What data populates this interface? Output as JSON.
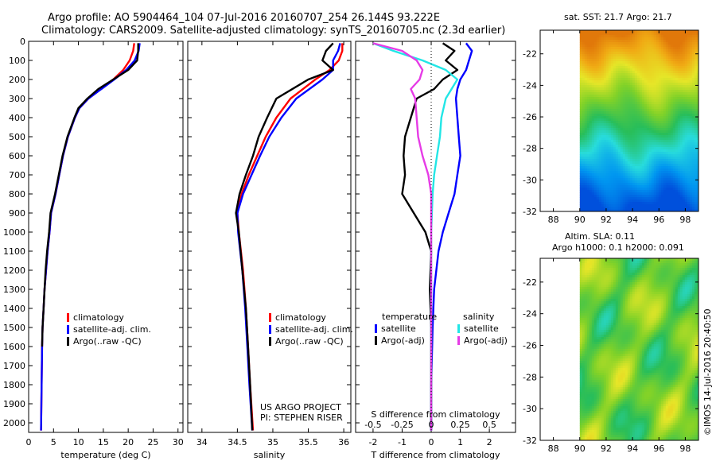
{
  "header": {
    "line1": "Argo profile: AO 5904464_104 07-Jul-2016 20160707_254 26.144S 93.222E",
    "line2": "Climatology: CARS2009. Satellite-adjusted climatology: synTS_20160705.nc (2.3d earlier)"
  },
  "colors": {
    "climatology": "#ff0000",
    "satellite": "#0000ff",
    "argo": "#000000",
    "sal_satellite": "#22e6e6",
    "sal_argo": "#e63be6"
  },
  "chart_data": [
    {
      "id": "temperature",
      "type": "line",
      "xlabel": "temperature (deg C)",
      "xlim": [
        0,
        31
      ],
      "xticks": [
        0,
        5,
        10,
        15,
        20,
        25,
        30
      ],
      "ylim": [
        2050,
        0
      ],
      "yticks": [
        0,
        100,
        200,
        300,
        400,
        500,
        600,
        700,
        800,
        900,
        1000,
        1100,
        1200,
        1300,
        1400,
        1500,
        1600,
        1700,
        1800,
        1900,
        2000
      ],
      "legend": [
        "climatology",
        "satellite-adj. clim.",
        "Argo(..raw -QC)"
      ],
      "series": [
        {
          "name": "climatology",
          "color": "#ff0000",
          "x": [
            21.2,
            21.0,
            20.3,
            19.0,
            17.0,
            14.5,
            12.0,
            10.2,
            9.3,
            8.6,
            7.9,
            6.9,
            5.4,
            4.5,
            4.2,
            3.8,
            3.5,
            3.2,
            3.0,
            2.8,
            2.7,
            2.6,
            2.5
          ],
          "y": [
            10,
            50,
            100,
            150,
            200,
            250,
            300,
            350,
            400,
            450,
            500,
            600,
            800,
            900,
            1000,
            1100,
            1200,
            1300,
            1400,
            1500,
            1600,
            1800,
            2040
          ]
        },
        {
          "name": "satellite-adj. clim.",
          "color": "#0000ff",
          "x": [
            22.3,
            22.1,
            21.3,
            19.6,
            17.2,
            14.6,
            12.0,
            10.2,
            9.3,
            8.6,
            7.9,
            6.9,
            5.4,
            4.5,
            4.2,
            3.8,
            3.5,
            3.2,
            3.0,
            2.8,
            2.7,
            2.6,
            2.5
          ],
          "y": [
            10,
            50,
            100,
            150,
            200,
            250,
            300,
            350,
            400,
            450,
            500,
            600,
            800,
            900,
            1000,
            1100,
            1200,
            1300,
            1400,
            1500,
            1600,
            1800,
            2040
          ]
        },
        {
          "name": "Argo(..raw -QC)",
          "color": "#000000",
          "x": [
            22.0,
            22.0,
            21.8,
            20.0,
            17.0,
            14.0,
            11.8,
            10.0,
            9.2,
            8.5,
            7.8,
            6.8,
            5.3,
            4.4,
            4.1,
            3.7,
            3.4,
            3.2,
            3.0,
            2.8,
            2.7
          ],
          "y": [
            10,
            50,
            100,
            150,
            200,
            250,
            300,
            350,
            400,
            450,
            500,
            600,
            800,
            900,
            1000,
            1100,
            1200,
            1300,
            1400,
            1500,
            1600
          ]
        }
      ]
    },
    {
      "id": "salinity",
      "type": "line",
      "xlabel": "salinity",
      "xlim": [
        33.8,
        36.1
      ],
      "xticks": [
        34,
        34.5,
        35,
        35.5,
        36
      ],
      "ylim": [
        2050,
        0
      ],
      "legend": [
        "climatology",
        "satellite-adj. clim.",
        "Argo(..raw -QC)"
      ],
      "annotation": [
        "US ARGO PROJECT",
        "PI: STEPHEN RISER"
      ],
      "series": [
        {
          "name": "climatology",
          "color": "#ff0000",
          "x": [
            35.98,
            35.98,
            35.93,
            35.8,
            35.6,
            35.25,
            35.05,
            34.9,
            34.78,
            34.66,
            34.56,
            34.5,
            34.52,
            34.58,
            34.62,
            34.65,
            34.68,
            34.72
          ],
          "y": [
            10,
            50,
            100,
            150,
            200,
            300,
            400,
            500,
            600,
            700,
            800,
            900,
            1000,
            1200,
            1400,
            1600,
            1800,
            2040
          ]
        },
        {
          "name": "satellite-adj. clim.",
          "color": "#0000ff",
          "x": [
            35.95,
            35.92,
            35.85,
            35.85,
            35.7,
            35.33,
            35.12,
            34.95,
            34.82,
            34.7,
            34.58,
            34.5,
            34.51,
            34.57,
            34.61,
            34.64,
            34.67,
            34.71
          ],
          "y": [
            10,
            50,
            100,
            150,
            200,
            300,
            400,
            500,
            600,
            700,
            800,
            900,
            1000,
            1200,
            1400,
            1600,
            1800,
            2040
          ]
        },
        {
          "name": "Argo(..raw -QC)",
          "color": "#000000",
          "x": [
            35.85,
            35.75,
            35.7,
            35.85,
            35.5,
            35.05,
            34.92,
            34.8,
            34.72,
            34.62,
            34.53,
            34.48,
            34.52,
            34.57,
            34.62,
            34.65,
            34.68,
            34.71
          ],
          "y": [
            10,
            50,
            100,
            150,
            200,
            300,
            400,
            500,
            600,
            700,
            800,
            900,
            1000,
            1200,
            1400,
            1600,
            1800,
            2040
          ]
        }
      ]
    },
    {
      "id": "difference",
      "type": "line",
      "xlabel": "T difference from climatology",
      "xlabel_top": "S difference from climatology",
      "xlim": [
        -2.6,
        2.9
      ],
      "xticks": [
        -2,
        -1,
        0,
        1,
        2
      ],
      "xticks_top": [
        -0.5,
        -0.25,
        0,
        0.25,
        0.5
      ],
      "ylim": [
        2050,
        0
      ],
      "legend_titles": [
        "temperature",
        "salinity"
      ],
      "legend": [
        "satellite",
        "Argo(-adj)",
        "satellite",
        "Argo(-adj)"
      ],
      "series": [
        {
          "name": "temperature satellite",
          "color": "#0000ff",
          "x": [
            1.2,
            1.4,
            1.3,
            1.2,
            1.0,
            0.9,
            0.85,
            0.9,
            0.95,
            1.0,
            0.9,
            0.8,
            0.6,
            0.4,
            0.25,
            0.1,
            0.05,
            0.0,
            0.0
          ],
          "y": [
            10,
            50,
            100,
            150,
            200,
            250,
            300,
            400,
            500,
            600,
            700,
            800,
            900,
            1000,
            1100,
            1300,
            1500,
            1800,
            2040
          ]
        },
        {
          "name": "temperature Argo(-adj)",
          "color": "#000000",
          "x": [
            0.4,
            0.8,
            0.5,
            0.9,
            0.4,
            0.1,
            -0.5,
            -0.7,
            -0.9,
            -0.95,
            -0.9,
            -1.0,
            -0.6,
            -0.2,
            0.0,
            -0.05,
            0.0,
            0.0,
            0.0
          ],
          "y": [
            10,
            50,
            100,
            150,
            200,
            250,
            300,
            400,
            500,
            600,
            700,
            800,
            900,
            1000,
            1100,
            1300,
            1500,
            1800,
            2040
          ]
        },
        {
          "name": "salinity satellite",
          "color": "#22e6e6",
          "x": [
            -2.0,
            -1.3,
            -0.3,
            0.5,
            0.9,
            0.7,
            0.5,
            0.35,
            0.3,
            0.2,
            0.1,
            0.05,
            0.0,
            0.0,
            0.0,
            0.0
          ],
          "y": [
            10,
            50,
            100,
            150,
            200,
            250,
            300,
            400,
            500,
            600,
            700,
            800,
            1000,
            1300,
            1600,
            2040
          ]
        },
        {
          "name": "salinity Argo(-adj)",
          "color": "#e63be6",
          "x": [
            -2.0,
            -1.0,
            -0.5,
            -0.3,
            -0.4,
            -0.7,
            -0.55,
            -0.5,
            -0.45,
            -0.3,
            -0.1,
            0.0,
            0.0,
            0.0,
            0.0
          ],
          "y": [
            10,
            50,
            100,
            150,
            200,
            250,
            300,
            400,
            500,
            600,
            700,
            800,
            1000,
            1300,
            2040
          ]
        }
      ]
    },
    {
      "id": "sst_map",
      "type": "heatmap",
      "title": "sat. SST: 21.7  Argo: 21.7",
      "xlim": [
        87,
        99
      ],
      "xticks": [
        88,
        90,
        92,
        94,
        96,
        98
      ],
      "ylim": [
        -32,
        -20.5
      ],
      "yticks": [
        -22,
        -24,
        -26,
        -28,
        -30,
        -32
      ],
      "data_from_lon": 90
    },
    {
      "id": "sla_map",
      "type": "heatmap",
      "title": "Altim. SLA: 0.11",
      "subtitle": "Argo h1000: 0.1 h2000: 0.091",
      "xlim": [
        87,
        99
      ],
      "xticks": [
        88,
        90,
        92,
        94,
        96,
        98
      ],
      "ylim": [
        -32,
        -20.5
      ],
      "yticks": [
        -22,
        -24,
        -26,
        -28,
        -30,
        -32
      ],
      "data_from_lon": 90
    }
  ],
  "side_stamp": "©IMOS 14-Jul-2016 20:40:50"
}
